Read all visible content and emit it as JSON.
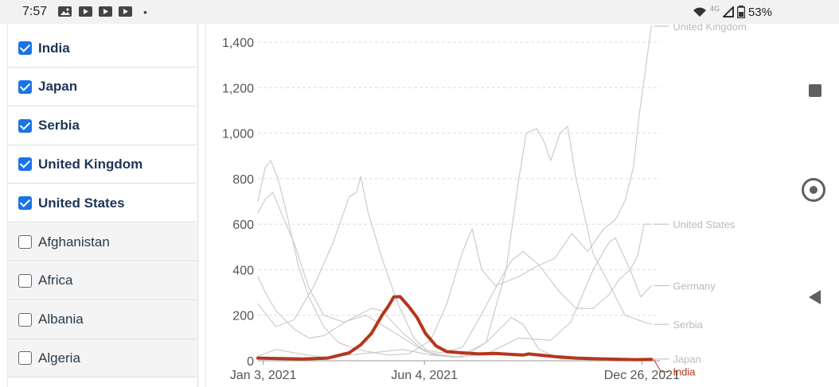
{
  "status_bar": {
    "time": "7:57",
    "icons": [
      "image-icon",
      "youtube-icon",
      "youtube-icon",
      "youtube-icon"
    ],
    "dot": "•",
    "network": "4G",
    "battery": "53%"
  },
  "country_list": [
    {
      "label": "India",
      "checked": true
    },
    {
      "label": "Japan",
      "checked": true
    },
    {
      "label": "Serbia",
      "checked": true
    },
    {
      "label": "United Kingdom",
      "checked": true
    },
    {
      "label": "United States",
      "checked": true
    },
    {
      "label": "Afghanistan",
      "checked": false
    },
    {
      "label": "Africa",
      "checked": false
    },
    {
      "label": "Albania",
      "checked": false
    },
    {
      "label": "Algeria",
      "checked": false
    }
  ],
  "colors": {
    "highlight": "#b5361c",
    "other_series": "#cccccc",
    "grid": "#dddddd",
    "checkbox": "#1a73e8"
  },
  "chart_data": {
    "type": "line",
    "title": "",
    "xlabel": "",
    "ylabel": "",
    "x_start": "2020-12-29",
    "x_end": "2022-01-12",
    "x_ticks": [
      {
        "label": "Jan 3, 2021",
        "date": "2021-01-03"
      },
      {
        "label": "Jun 4, 2021",
        "date": "2021-06-04"
      },
      {
        "label": "Dec 26, 2021",
        "date": "2021-12-26"
      }
    ],
    "ylim": [
      0,
      1400
    ],
    "y_ticks": [
      0,
      200,
      400,
      600,
      800,
      1000,
      1200,
      1400
    ],
    "y_tick_labels": [
      "0",
      "200",
      "400",
      "600",
      "800",
      "1,000",
      "1,200",
      "1,400"
    ],
    "grid": true,
    "legend": "end-labels",
    "series": [
      {
        "name": "United Kingdom",
        "highlighted": false,
        "points": [
          [
            "2020-12-29",
            700
          ],
          [
            "2021-01-05",
            850
          ],
          [
            "2021-01-10",
            880
          ],
          [
            "2021-01-17",
            800
          ],
          [
            "2021-01-25",
            650
          ],
          [
            "2021-02-05",
            420
          ],
          [
            "2021-02-15",
            280
          ],
          [
            "2021-03-01",
            150
          ],
          [
            "2021-03-15",
            80
          ],
          [
            "2021-04-01",
            50
          ],
          [
            "2021-05-01",
            25
          ],
          [
            "2021-05-20",
            30
          ],
          [
            "2021-06-10",
            90
          ],
          [
            "2021-06-25",
            250
          ],
          [
            "2021-07-10",
            480
          ],
          [
            "2021-07-19",
            580
          ],
          [
            "2021-07-28",
            400
          ],
          [
            "2021-08-10",
            330
          ],
          [
            "2021-09-01",
            370
          ],
          [
            "2021-09-20",
            420
          ],
          [
            "2021-10-05",
            450
          ],
          [
            "2021-10-21",
            560
          ],
          [
            "2021-11-05",
            480
          ],
          [
            "2021-11-20",
            580
          ],
          [
            "2021-12-01",
            620
          ],
          [
            "2021-12-10",
            700
          ],
          [
            "2021-12-18",
            850
          ],
          [
            "2021-12-24",
            1100
          ],
          [
            "2021-12-30",
            1300
          ],
          [
            "2022-01-04",
            1470
          ]
        ]
      },
      {
        "name": "United States",
        "highlighted": false,
        "points": [
          [
            "2020-12-29",
            650
          ],
          [
            "2021-01-05",
            710
          ],
          [
            "2021-01-12",
            740
          ],
          [
            "2021-01-20",
            650
          ],
          [
            "2021-02-01",
            520
          ],
          [
            "2021-02-15",
            320
          ],
          [
            "2021-03-01",
            200
          ],
          [
            "2021-03-20",
            170
          ],
          [
            "2021-04-10",
            200
          ],
          [
            "2021-05-01",
            140
          ],
          [
            "2021-06-01",
            50
          ],
          [
            "2021-06-20",
            35
          ],
          [
            "2021-07-10",
            60
          ],
          [
            "2021-07-25",
            180
          ],
          [
            "2021-08-10",
            320
          ],
          [
            "2021-08-25",
            440
          ],
          [
            "2021-09-05",
            480
          ],
          [
            "2021-09-20",
            420
          ],
          [
            "2021-10-10",
            300
          ],
          [
            "2021-10-25",
            230
          ],
          [
            "2021-11-10",
            230
          ],
          [
            "2021-11-25",
            290
          ],
          [
            "2021-12-05",
            360
          ],
          [
            "2021-12-15",
            400
          ],
          [
            "2021-12-22",
            460
          ],
          [
            "2021-12-28",
            600
          ],
          [
            "2022-01-04",
            600
          ]
        ]
      },
      {
        "name": "Germany",
        "highlighted": false,
        "points": [
          [
            "2020-12-29",
            370
          ],
          [
            "2021-01-05",
            300
          ],
          [
            "2021-01-15",
            220
          ],
          [
            "2021-02-01",
            140
          ],
          [
            "2021-02-15",
            100
          ],
          [
            "2021-03-01",
            110
          ],
          [
            "2021-03-25",
            180
          ],
          [
            "2021-04-15",
            230
          ],
          [
            "2021-04-25",
            220
          ],
          [
            "2021-05-15",
            120
          ],
          [
            "2021-06-05",
            40
          ],
          [
            "2021-07-01",
            15
          ],
          [
            "2021-08-01",
            30
          ],
          [
            "2021-09-01",
            100
          ],
          [
            "2021-10-01",
            90
          ],
          [
            "2021-10-20",
            170
          ],
          [
            "2021-11-10",
            400
          ],
          [
            "2021-11-25",
            520
          ],
          [
            "2021-12-01",
            540
          ],
          [
            "2021-12-15",
            400
          ],
          [
            "2021-12-25",
            280
          ],
          [
            "2022-01-04",
            330
          ]
        ]
      },
      {
        "name": "Serbia",
        "highlighted": false,
        "points": [
          [
            "2020-12-29",
            250
          ],
          [
            "2021-01-15",
            150
          ],
          [
            "2021-02-01",
            180
          ],
          [
            "2021-02-20",
            330
          ],
          [
            "2021-03-10",
            520
          ],
          [
            "2021-03-25",
            720
          ],
          [
            "2021-04-01",
            740
          ],
          [
            "2021-04-05",
            810
          ],
          [
            "2021-04-12",
            650
          ],
          [
            "2021-04-25",
            450
          ],
          [
            "2021-05-10",
            250
          ],
          [
            "2021-05-25",
            100
          ],
          [
            "2021-06-10",
            30
          ],
          [
            "2021-07-10",
            15
          ],
          [
            "2021-08-01",
            80
          ],
          [
            "2021-08-20",
            400
          ],
          [
            "2021-09-01",
            800
          ],
          [
            "2021-09-08",
            1000
          ],
          [
            "2021-09-18",
            1020
          ],
          [
            "2021-09-25",
            960
          ],
          [
            "2021-10-01",
            880
          ],
          [
            "2021-10-10",
            1000
          ],
          [
            "2021-10-17",
            1030
          ],
          [
            "2021-10-25",
            800
          ],
          [
            "2021-11-10",
            470
          ],
          [
            "2021-11-25",
            340
          ],
          [
            "2021-12-10",
            200
          ],
          [
            "2021-12-28",
            170
          ],
          [
            "2022-01-04",
            160
          ]
        ]
      },
      {
        "name": "Japan",
        "highlighted": false,
        "points": [
          [
            "2020-12-29",
            20
          ],
          [
            "2021-01-15",
            50
          ],
          [
            "2021-02-01",
            35
          ],
          [
            "2021-03-01",
            15
          ],
          [
            "2021-04-15",
            35
          ],
          [
            "2021-05-15",
            50
          ],
          [
            "2021-06-10",
            25
          ],
          [
            "2021-07-05",
            15
          ],
          [
            "2021-08-01",
            80
          ],
          [
            "2021-08-25",
            190
          ],
          [
            "2021-09-05",
            160
          ],
          [
            "2021-09-20",
            50
          ],
          [
            "2021-10-10",
            8
          ],
          [
            "2021-11-20",
            2
          ],
          [
            "2021-12-20",
            3
          ],
          [
            "2022-01-04",
            8
          ]
        ]
      },
      {
        "name": "India",
        "highlighted": true,
        "points": [
          [
            "2020-12-29",
            12
          ],
          [
            "2021-01-15",
            10
          ],
          [
            "2021-02-10",
            8
          ],
          [
            "2021-03-05",
            12
          ],
          [
            "2021-03-25",
            35
          ],
          [
            "2021-04-05",
            70
          ],
          [
            "2021-04-15",
            120
          ],
          [
            "2021-04-25",
            200
          ],
          [
            "2021-05-01",
            240
          ],
          [
            "2021-05-06",
            280
          ],
          [
            "2021-05-12",
            282
          ],
          [
            "2021-05-20",
            240
          ],
          [
            "2021-05-28",
            190
          ],
          [
            "2021-06-05",
            120
          ],
          [
            "2021-06-15",
            65
          ],
          [
            "2021-06-25",
            40
          ],
          [
            "2021-07-10",
            35
          ],
          [
            "2021-07-25",
            30
          ],
          [
            "2021-08-10",
            32
          ],
          [
            "2021-08-25",
            28
          ],
          [
            "2021-09-05",
            25
          ],
          [
            "2021-09-10",
            30
          ],
          [
            "2021-09-20",
            25
          ],
          [
            "2021-10-05",
            18
          ],
          [
            "2021-10-25",
            12
          ],
          [
            "2021-11-20",
            8
          ],
          [
            "2021-12-20",
            5
          ],
          [
            "2022-01-04",
            6
          ]
        ]
      }
    ]
  }
}
